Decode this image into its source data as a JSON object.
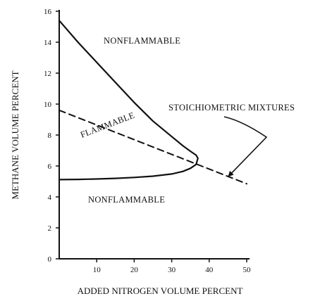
{
  "chart_data": {
    "type": "line",
    "title": "",
    "xlabel": "ADDED NITROGEN VOLUME PERCENT",
    "ylabel": "METHANE VOLUME PERCENT",
    "xlim": [
      0,
      50
    ],
    "ylim": [
      0,
      16
    ],
    "x_ticks": [
      10,
      20,
      30,
      40,
      50
    ],
    "y_ticks": [
      0,
      2,
      4,
      6,
      8,
      10,
      12,
      14,
      16
    ],
    "grid": false,
    "series": [
      {
        "style": "solid",
        "x": [
          0,
          5,
          10,
          15,
          20,
          25,
          30,
          33,
          35,
          36.5,
          37,
          36.5,
          35,
          33,
          30,
          25,
          20,
          15,
          10,
          5,
          0
        ],
        "y": [
          15.4,
          14.0,
          12.7,
          11.4,
          10.1,
          8.9,
          7.9,
          7.3,
          6.95,
          6.7,
          6.5,
          6.1,
          5.85,
          5.65,
          5.48,
          5.34,
          5.26,
          5.2,
          5.16,
          5.13,
          5.12
        ]
      },
      {
        "style": "dashed",
        "x": [
          0,
          50
        ],
        "y": [
          9.6,
          4.85
        ]
      }
    ],
    "annotations": [
      {
        "text": "NONFLAMMABLE"
      },
      {
        "text": "FLAMMABLE"
      },
      {
        "text": "NONFLAMMABLE"
      },
      {
        "text": "STOICHIOMETRIC MIXTURES"
      }
    ],
    "arrow_targets": [
      {
        "x": 45,
        "y": 5.3
      }
    ]
  },
  "colors": {
    "ink": "#111111",
    "background": "#ffffff"
  }
}
